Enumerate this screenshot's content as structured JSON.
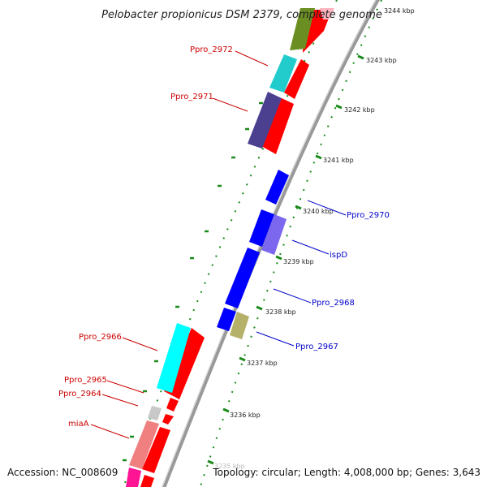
{
  "title": "Pelobacter propionicus DSM 2379, complete genome",
  "footer": {
    "accession": "Accession: NC_008609",
    "topology": "Topology: circular; Length: 4,008,000 bp; Genes: 3,643"
  },
  "ticks": [
    {
      "label": "3244 kbp",
      "kbp": 3244
    },
    {
      "label": "3243 kbp",
      "kbp": 3243
    },
    {
      "label": "3242 kbp",
      "kbp": 3242
    },
    {
      "label": "3241 kbp",
      "kbp": 3241
    },
    {
      "label": "3240 kbp",
      "kbp": 3240
    },
    {
      "label": "3239 kbp",
      "kbp": 3239
    },
    {
      "label": "3238 kbp",
      "kbp": 3238
    },
    {
      "label": "3237 kbp",
      "kbp": 3237
    },
    {
      "label": "3236 kbp",
      "kbp": 3236
    },
    {
      "label": "3235 kbp",
      "kbp": 3235
    }
  ],
  "gene_labels": [
    {
      "text": "Ppro_2972",
      "strand": "minus"
    },
    {
      "text": "Ppro_2971",
      "strand": "minus"
    },
    {
      "text": "Ppro_2970",
      "strand": "plus"
    },
    {
      "text": "ispD",
      "strand": "plus"
    },
    {
      "text": "Ppro_2968",
      "strand": "plus"
    },
    {
      "text": "Ppro_2967",
      "strand": "plus"
    },
    {
      "text": "Ppro_2966",
      "strand": "minus"
    },
    {
      "text": "Ppro_2965",
      "strand": "minus"
    },
    {
      "text": "Ppro_2964",
      "strand": "minus"
    },
    {
      "text": "miaA",
      "strand": "minus"
    }
  ],
  "colors": {
    "minus_label": "#cc0000",
    "plus_label": "#0000cc",
    "backbone": "#999999",
    "tick": "#1a8a1a",
    "cds_red": "#ff0000",
    "cds_blue": "#0000ff",
    "cog_olive": "#6b8e23",
    "cog_cyan": "#22cccc",
    "cog_navy": "#4b3f8f",
    "cog_aqua": "#00ffff",
    "cog_violet": "#7b68ee",
    "cog_khaki": "#b5b06a",
    "cog_grey": "#c8c8c8",
    "cog_pink": "#f08080",
    "cog_magenta": "#ff1493",
    "cog_lightpink": "#ffb6c1"
  }
}
